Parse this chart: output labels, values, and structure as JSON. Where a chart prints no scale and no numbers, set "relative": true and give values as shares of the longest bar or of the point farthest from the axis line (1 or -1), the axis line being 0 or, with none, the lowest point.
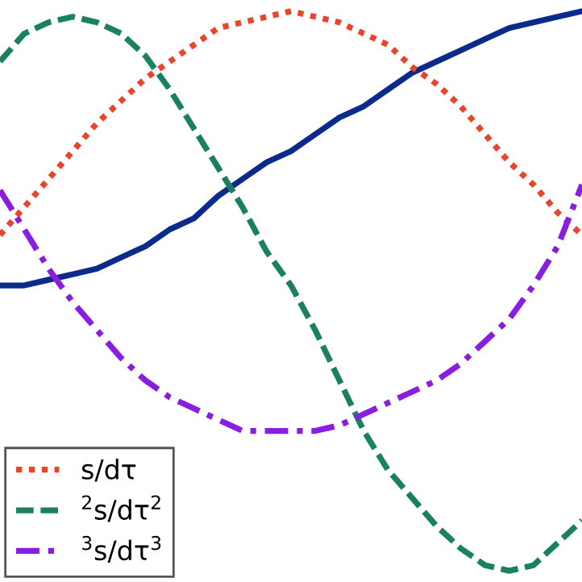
{
  "chart_data": {
    "type": "line",
    "relative": true,
    "categories": [
      null,
      null,
      null,
      null,
      null,
      null,
      null,
      null,
      null,
      null,
      null,
      null,
      null,
      null,
      null,
      null,
      null,
      null,
      null,
      null,
      null,
      null,
      null,
      null,
      null
    ],
    "series": [
      {
        "color": "#0a2a8c",
        "line_style": "solid",
        "values": [
          0.51,
          0.51,
          0.52,
          0.53,
          0.54,
          0.56,
          0.58,
          0.61,
          0.63,
          0.67,
          0.7,
          0.73,
          0.75,
          0.78,
          0.81,
          0.83,
          0.86,
          0.89,
          0.91,
          0.93,
          0.95,
          0.97,
          0.98,
          0.99,
          1.0
        ]
      },
      {
        "name": "s/dτ",
        "color": "#e8452a",
        "line_style": "dotted",
        "values": [
          0.6,
          0.65,
          0.7,
          0.75,
          0.8,
          0.84,
          0.88,
          0.91,
          0.94,
          0.97,
          0.98,
          0.99,
          1.0,
          0.99,
          0.98,
          0.96,
          0.94,
          0.9,
          0.87,
          0.83,
          0.78,
          0.73,
          0.69,
          0.64,
          0.6
        ]
      },
      {
        "name": "$^{2}$s/dτ$^{2}$",
        "color": "#1a8060",
        "line_style": "dashed",
        "values": [
          0.91,
          0.96,
          0.98,
          0.99,
          0.98,
          0.96,
          0.92,
          0.86,
          0.79,
          0.72,
          0.65,
          0.57,
          0.51,
          0.43,
          0.34,
          0.25,
          0.18,
          0.13,
          0.08,
          0.04,
          0.01,
          0.0,
          0.01,
          0.05,
          0.09
        ]
      },
      {
        "name": "$^{3}$s/dτ$^{3}$",
        "color": "#8a1ee0",
        "line_style": "dashdot",
        "values": [
          0.68,
          0.61,
          0.54,
          0.48,
          0.43,
          0.38,
          0.34,
          0.31,
          0.29,
          0.27,
          0.25,
          0.25,
          0.25,
          0.25,
          0.26,
          0.28,
          0.3,
          0.32,
          0.34,
          0.37,
          0.41,
          0.45,
          0.51,
          0.58,
          0.69
        ]
      }
    ],
    "legend": "bottom left",
    "grid": false,
    "marker": "none"
  }
}
